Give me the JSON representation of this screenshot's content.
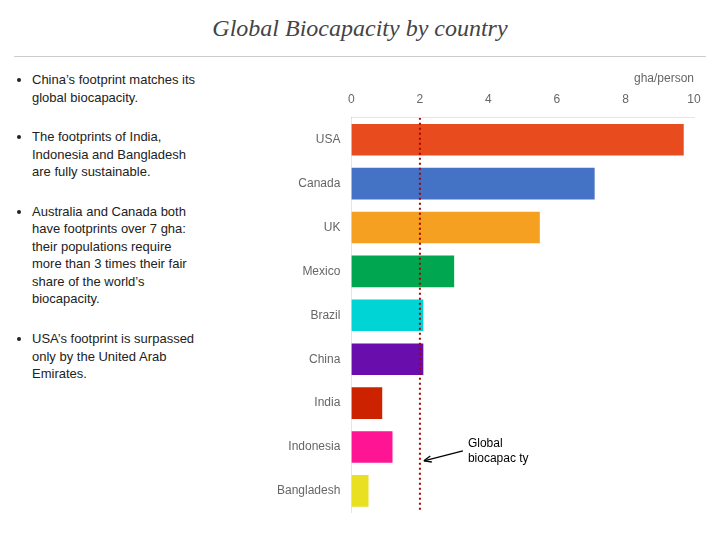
{
  "chart_data": {
    "type": "bar",
    "orientation": "horizontal",
    "title": "Global Biocapacity by country",
    "xlabel": "gha/person",
    "categories": [
      "USA",
      "Canada",
      "UK",
      "Mexico",
      "Brazil",
      "China",
      "India",
      "Indonesia",
      "Bangladesh"
    ],
    "values": [
      9.7,
      7.1,
      5.5,
      3.0,
      2.1,
      2.1,
      0.9,
      1.2,
      0.5
    ],
    "colors": [
      "#e84c1e",
      "#4472c4",
      "#f5a020",
      "#00a650",
      "#00d4d4",
      "#6a0dad",
      "#cc2200",
      "#ff1493",
      "#e8e020"
    ],
    "xlim": [
      0,
      10
    ],
    "xticks": [
      0,
      2,
      4,
      6,
      8,
      10
    ],
    "grid": false,
    "reference_line": {
      "value": 2.0,
      "color": "#aa0000",
      "line_style": "dotted",
      "label": "Global\nbiocapac ty"
    },
    "annotations": [
      "China’s footprint matches its\n global biocapacity.",
      "The footprints of India,\n Indonesia and Bangladesh\n are fully sustainable.",
      "Australia and Canada both\n have footprints over 7 gha:\n their populations require\n more than 3 times their fair\n share of the world’s\n biocapacity.",
      "USA’s footprint is surpassed\n only by the United Arab\n Emirates."
    ]
  }
}
